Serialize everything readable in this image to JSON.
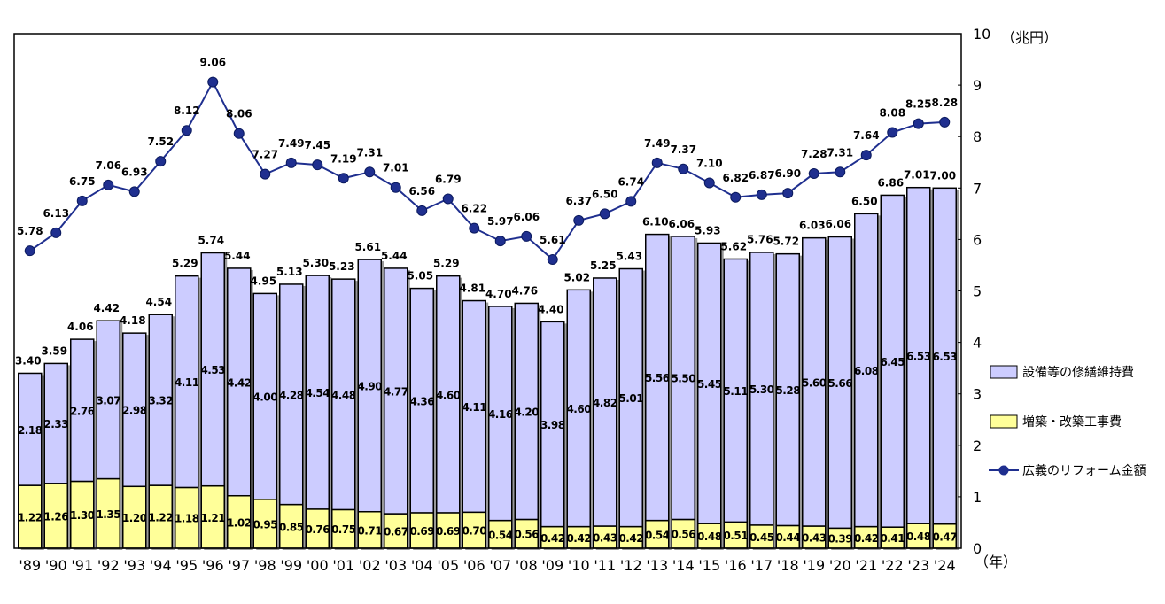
{
  "chart_data": {
    "type": "bar",
    "stacked": true,
    "unit_label": "（兆円）",
    "xlabel": "（年）",
    "ylim": [
      0,
      10
    ],
    "yticks": [
      0,
      1,
      2,
      3,
      4,
      5,
      6,
      7,
      8,
      9,
      10
    ],
    "categories": [
      "'89",
      "'90",
      "'91",
      "'92",
      "'93",
      "'94",
      "'95",
      "'96",
      "'97",
      "'98",
      "'99",
      "'00",
      "'01",
      "'02",
      "'03",
      "'04",
      "'05",
      "'06",
      "'07",
      "'08",
      "'09",
      "'10",
      "'11",
      "'12",
      "'13",
      "'14",
      "'15",
      "'16",
      "'17",
      "'18",
      "'19",
      "'20",
      "'21",
      "'22",
      "'23",
      "'24"
    ],
    "series": [
      {
        "name": "増築・改築工事費",
        "kind": "bar",
        "color": "#ffff99",
        "values": [
          1.22,
          1.26,
          1.3,
          1.35,
          1.2,
          1.22,
          1.18,
          1.21,
          1.02,
          0.95,
          0.85,
          0.76,
          0.75,
          0.71,
          0.67,
          0.69,
          0.69,
          0.7,
          0.54,
          0.56,
          0.42,
          0.42,
          0.43,
          0.42,
          0.54,
          0.56,
          0.48,
          0.51,
          0.45,
          0.44,
          0.43,
          0.39,
          0.42,
          0.41,
          0.48,
          0.47
        ]
      },
      {
        "name": "設備等の修繕維持費",
        "kind": "bar",
        "color": "#ccccff",
        "values": [
          2.18,
          2.33,
          2.76,
          3.07,
          2.98,
          3.32,
          4.11,
          4.53,
          4.42,
          4.0,
          4.28,
          4.54,
          4.48,
          4.9,
          4.77,
          4.36,
          4.6,
          4.11,
          4.16,
          4.2,
          3.98,
          4.6,
          4.82,
          5.01,
          5.56,
          5.5,
          5.45,
          5.11,
          5.3,
          5.28,
          5.6,
          5.66,
          6.08,
          6.45,
          6.53,
          6.53
        ]
      },
      {
        "name": "広義のリフォーム金額",
        "kind": "line",
        "color": "#1f2f8f",
        "values": [
          5.78,
          6.13,
          6.75,
          7.06,
          6.93,
          7.52,
          8.12,
          9.06,
          8.06,
          7.27,
          7.49,
          7.45,
          7.19,
          7.31,
          7.01,
          6.56,
          6.79,
          6.22,
          5.97,
          6.06,
          5.61,
          6.37,
          6.5,
          6.74,
          7.49,
          7.37,
          7.1,
          6.82,
          6.87,
          6.9,
          7.28,
          7.31,
          7.64,
          8.08,
          8.25,
          8.28
        ]
      }
    ],
    "bar_totals": [
      3.4,
      3.59,
      4.06,
      4.42,
      4.18,
      4.54,
      5.29,
      5.74,
      5.44,
      4.95,
      5.13,
      5.3,
      5.23,
      5.61,
      5.44,
      5.05,
      5.29,
      4.81,
      4.7,
      4.76,
      4.4,
      5.02,
      5.25,
      5.43,
      6.1,
      6.06,
      5.93,
      5.62,
      5.76,
      5.72,
      6.03,
      6.06,
      6.5,
      6.86,
      7.01,
      7.0
    ],
    "legend": [
      "設備等の修繕維持費",
      "増築・改築工事費",
      "広義のリフォーム金額"
    ],
    "legend_position": "right",
    "grid": false
  }
}
